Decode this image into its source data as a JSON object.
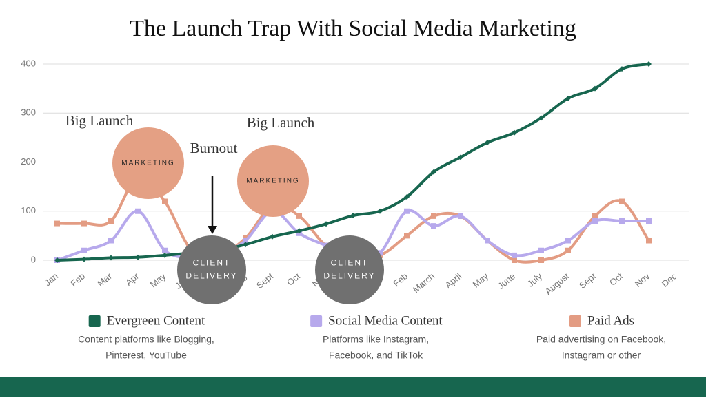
{
  "chart_data": {
    "type": "line",
    "title": "The Launch Trap With Social Media Marketing",
    "categories": [
      "Jan",
      "Feb",
      "Mar",
      "Apr",
      "May",
      "June",
      "July",
      "Aug",
      "Sept",
      "Oct",
      "Nov",
      "Dec",
      "Jan",
      "Feb",
      "March",
      "April",
      "May",
      "June",
      "July",
      "August",
      "Sept",
      "Oct",
      "Nov",
      "Dec"
    ],
    "ylim": [
      0,
      400
    ],
    "yticks": [
      0,
      100,
      200,
      300,
      400
    ],
    "grid": true,
    "series": [
      {
        "name": "Evergreen Content",
        "color": "#17664f",
        "marker": "diamond",
        "description": [
          "Content platforms like Blogging,",
          "Pinterest, YouTube"
        ],
        "values": [
          0,
          2,
          5,
          6,
          10,
          15,
          20,
          32,
          48,
          60,
          74,
          91,
          100,
          129,
          180,
          210,
          240,
          260,
          290,
          330,
          350,
          390,
          400,
          null
        ]
      },
      {
        "name": "Social Media Content",
        "color": "#b7a9ec",
        "marker": "square",
        "description": [
          "Platforms like Instagram,",
          "Facebook, and TikTok"
        ],
        "values": [
          0,
          20,
          40,
          100,
          20,
          5,
          10,
          40,
          100,
          55,
          30,
          10,
          15,
          100,
          70,
          90,
          40,
          10,
          20,
          40,
          80,
          80,
          80,
          null
        ]
      },
      {
        "name": "Paid Ads",
        "color": "#e39c83",
        "marker": "square",
        "description": [
          "Paid advertising on Facebook,",
          "Instagram or other"
        ],
        "values": [
          75,
          75,
          80,
          170,
          120,
          20,
          10,
          45,
          110,
          90,
          30,
          10,
          10,
          50,
          90,
          90,
          40,
          0,
          0,
          20,
          90,
          120,
          40,
          null
        ]
      }
    ],
    "annotations": [
      "Big Launch",
      "Big Launch",
      "Burnout"
    ],
    "bubbles": [
      {
        "text": [
          "MARKETING"
        ],
        "color": "#e4a084"
      },
      {
        "text": [
          "MARKETING"
        ],
        "color": "#e4a084"
      },
      {
        "text": [
          "CLIENT",
          "DELIVERY"
        ],
        "color": "#707070"
      },
      {
        "text": [
          "CLIENT",
          "DELIVERY"
        ],
        "color": "#707070"
      }
    ]
  }
}
